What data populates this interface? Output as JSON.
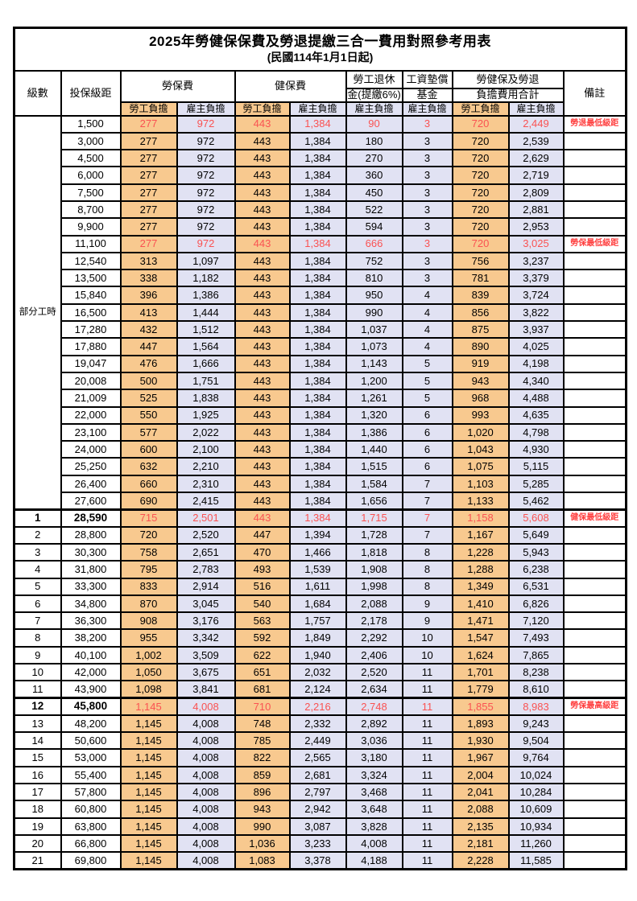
{
  "title": "2025年勞健保保費及勞退提繳三合一費用對照參考用表",
  "subtitle": "(民國114年1月1日起)",
  "colors": {
    "employee_column_bg": "#F8C98F",
    "employer_column_bg": "#E1E2F3",
    "highlight_value_text": "#FA5252",
    "note_text": "#FF4040",
    "border": "#000000"
  },
  "header": {
    "level": "級數",
    "bracket": "投保級距",
    "labor_fee": "勞保費",
    "health_fee": "健保費",
    "pension_line1": "勞工退休",
    "pension_line2": "金(提繳6%)",
    "wage_fund_line1": "工資墊償",
    "wage_fund_line2": "基金",
    "total_line1": "勞健保及勞退",
    "total_line2": "負擔費用合計",
    "note": "備註",
    "employee_share": "勞工負擔",
    "employer_share": "雇主負擔"
  },
  "group_label": "部分工時",
  "group_rowspan": 23,
  "rows": [
    {
      "level": "",
      "bracket": "1,500",
      "values": [
        "277",
        "972",
        "443",
        "1,384",
        "90",
        "3",
        "720",
        "2,449"
      ],
      "note": "勞退最低級距",
      "red": true,
      "bold": false,
      "thick": false
    },
    {
      "level": "",
      "bracket": "3,000",
      "values": [
        "277",
        "972",
        "443",
        "1,384",
        "180",
        "3",
        "720",
        "2,539"
      ],
      "note": "",
      "red": false,
      "bold": false,
      "thick": false
    },
    {
      "level": "",
      "bracket": "4,500",
      "values": [
        "277",
        "972",
        "443",
        "1,384",
        "270",
        "3",
        "720",
        "2,629"
      ],
      "note": "",
      "red": false,
      "bold": false,
      "thick": false
    },
    {
      "level": "",
      "bracket": "6,000",
      "values": [
        "277",
        "972",
        "443",
        "1,384",
        "360",
        "3",
        "720",
        "2,719"
      ],
      "note": "",
      "red": false,
      "bold": false,
      "thick": false
    },
    {
      "level": "",
      "bracket": "7,500",
      "values": [
        "277",
        "972",
        "443",
        "1,384",
        "450",
        "3",
        "720",
        "2,809"
      ],
      "note": "",
      "red": false,
      "bold": false,
      "thick": false
    },
    {
      "level": "",
      "bracket": "8,700",
      "values": [
        "277",
        "972",
        "443",
        "1,384",
        "522",
        "3",
        "720",
        "2,881"
      ],
      "note": "",
      "red": false,
      "bold": false,
      "thick": false
    },
    {
      "level": "",
      "bracket": "9,900",
      "values": [
        "277",
        "972",
        "443",
        "1,384",
        "594",
        "3",
        "720",
        "2,953"
      ],
      "note": "",
      "red": false,
      "bold": false,
      "thick": false
    },
    {
      "level": "",
      "bracket": "11,100",
      "values": [
        "277",
        "972",
        "443",
        "1,384",
        "666",
        "3",
        "720",
        "3,025"
      ],
      "note": "勞保最低級距",
      "red": true,
      "bold": false,
      "thick": false
    },
    {
      "level": "",
      "bracket": "12,540",
      "values": [
        "313",
        "1,097",
        "443",
        "1,384",
        "752",
        "3",
        "756",
        "3,237"
      ],
      "note": "",
      "red": false,
      "bold": false,
      "thick": false
    },
    {
      "level": "",
      "bracket": "13,500",
      "values": [
        "338",
        "1,182",
        "443",
        "1,384",
        "810",
        "3",
        "781",
        "3,379"
      ],
      "note": "",
      "red": false,
      "bold": false,
      "thick": false
    },
    {
      "level": "",
      "bracket": "15,840",
      "values": [
        "396",
        "1,386",
        "443",
        "1,384",
        "950",
        "4",
        "839",
        "3,724"
      ],
      "note": "",
      "red": false,
      "bold": false,
      "thick": false
    },
    {
      "level": "",
      "bracket": "16,500",
      "values": [
        "413",
        "1,444",
        "443",
        "1,384",
        "990",
        "4",
        "856",
        "3,822"
      ],
      "note": "",
      "red": false,
      "bold": false,
      "thick": false
    },
    {
      "level": "",
      "bracket": "17,280",
      "values": [
        "432",
        "1,512",
        "443",
        "1,384",
        "1,037",
        "4",
        "875",
        "3,937"
      ],
      "note": "",
      "red": false,
      "bold": false,
      "thick": false
    },
    {
      "level": "",
      "bracket": "17,880",
      "values": [
        "447",
        "1,564",
        "443",
        "1,384",
        "1,073",
        "4",
        "890",
        "4,025"
      ],
      "note": "",
      "red": false,
      "bold": false,
      "thick": false
    },
    {
      "level": "",
      "bracket": "19,047",
      "values": [
        "476",
        "1,666",
        "443",
        "1,384",
        "1,143",
        "5",
        "919",
        "4,198"
      ],
      "note": "",
      "red": false,
      "bold": false,
      "thick": false
    },
    {
      "level": "",
      "bracket": "20,008",
      "values": [
        "500",
        "1,751",
        "443",
        "1,384",
        "1,200",
        "5",
        "943",
        "4,340"
      ],
      "note": "",
      "red": false,
      "bold": false,
      "thick": false
    },
    {
      "level": "",
      "bracket": "21,009",
      "values": [
        "525",
        "1,838",
        "443",
        "1,384",
        "1,261",
        "5",
        "968",
        "4,488"
      ],
      "note": "",
      "red": false,
      "bold": false,
      "thick": false
    },
    {
      "level": "",
      "bracket": "22,000",
      "values": [
        "550",
        "1,925",
        "443",
        "1,384",
        "1,320",
        "6",
        "993",
        "4,635"
      ],
      "note": "",
      "red": false,
      "bold": false,
      "thick": false
    },
    {
      "level": "",
      "bracket": "23,100",
      "values": [
        "577",
        "2,022",
        "443",
        "1,384",
        "1,386",
        "6",
        "1,020",
        "4,798"
      ],
      "note": "",
      "red": false,
      "bold": false,
      "thick": false
    },
    {
      "level": "",
      "bracket": "24,000",
      "values": [
        "600",
        "2,100",
        "443",
        "1,384",
        "1,440",
        "6",
        "1,043",
        "4,930"
      ],
      "note": "",
      "red": false,
      "bold": false,
      "thick": false
    },
    {
      "level": "",
      "bracket": "25,250",
      "values": [
        "632",
        "2,210",
        "443",
        "1,384",
        "1,515",
        "6",
        "1,075",
        "5,115"
      ],
      "note": "",
      "red": false,
      "bold": false,
      "thick": false
    },
    {
      "level": "",
      "bracket": "26,400",
      "values": [
        "660",
        "2,310",
        "443",
        "1,384",
        "1,584",
        "7",
        "1,103",
        "5,285"
      ],
      "note": "",
      "red": false,
      "bold": false,
      "thick": false
    },
    {
      "level": "",
      "bracket": "27,600",
      "values": [
        "690",
        "2,415",
        "443",
        "1,384",
        "1,656",
        "7",
        "1,133",
        "5,462"
      ],
      "note": "",
      "red": false,
      "bold": false,
      "thick": false
    },
    {
      "level": "1",
      "bracket": "28,590",
      "values": [
        "715",
        "2,501",
        "443",
        "1,384",
        "1,715",
        "7",
        "1,158",
        "5,608"
      ],
      "note": "健保最低級距",
      "red": true,
      "bold": true,
      "thick": true
    },
    {
      "level": "2",
      "bracket": "28,800",
      "values": [
        "720",
        "2,520",
        "447",
        "1,394",
        "1,728",
        "7",
        "1,167",
        "5,649"
      ],
      "note": "",
      "red": false,
      "bold": false,
      "thick": false
    },
    {
      "level": "3",
      "bracket": "30,300",
      "values": [
        "758",
        "2,651",
        "470",
        "1,466",
        "1,818",
        "8",
        "1,228",
        "5,943"
      ],
      "note": "",
      "red": false,
      "bold": false,
      "thick": false
    },
    {
      "level": "4",
      "bracket": "31,800",
      "values": [
        "795",
        "2,783",
        "493",
        "1,539",
        "1,908",
        "8",
        "1,288",
        "6,238"
      ],
      "note": "",
      "red": false,
      "bold": false,
      "thick": false
    },
    {
      "level": "5",
      "bracket": "33,300",
      "values": [
        "833",
        "2,914",
        "516",
        "1,611",
        "1,998",
        "8",
        "1,349",
        "6,531"
      ],
      "note": "",
      "red": false,
      "bold": false,
      "thick": false
    },
    {
      "level": "6",
      "bracket": "34,800",
      "values": [
        "870",
        "3,045",
        "540",
        "1,684",
        "2,088",
        "9",
        "1,410",
        "6,826"
      ],
      "note": "",
      "red": false,
      "bold": false,
      "thick": false
    },
    {
      "level": "7",
      "bracket": "36,300",
      "values": [
        "908",
        "3,176",
        "563",
        "1,757",
        "2,178",
        "9",
        "1,471",
        "7,120"
      ],
      "note": "",
      "red": false,
      "bold": false,
      "thick": false
    },
    {
      "level": "8",
      "bracket": "38,200",
      "values": [
        "955",
        "3,342",
        "592",
        "1,849",
        "2,292",
        "10",
        "1,547",
        "7,493"
      ],
      "note": "",
      "red": false,
      "bold": false,
      "thick": false
    },
    {
      "level": "9",
      "bracket": "40,100",
      "values": [
        "1,002",
        "3,509",
        "622",
        "1,940",
        "2,406",
        "10",
        "1,624",
        "7,865"
      ],
      "note": "",
      "red": false,
      "bold": false,
      "thick": false
    },
    {
      "level": "10",
      "bracket": "42,000",
      "values": [
        "1,050",
        "3,675",
        "651",
        "2,032",
        "2,520",
        "11",
        "1,701",
        "8,238"
      ],
      "note": "",
      "red": false,
      "bold": false,
      "thick": false
    },
    {
      "level": "11",
      "bracket": "43,900",
      "values": [
        "1,098",
        "3,841",
        "681",
        "2,124",
        "2,634",
        "11",
        "1,779",
        "8,610"
      ],
      "note": "",
      "red": false,
      "bold": false,
      "thick": false
    },
    {
      "level": "12",
      "bracket": "45,800",
      "values": [
        "1,145",
        "4,008",
        "710",
        "2,216",
        "2,748",
        "11",
        "1,855",
        "8,983"
      ],
      "note": "勞保最高級距",
      "red": true,
      "bold": true,
      "thick": true
    },
    {
      "level": "13",
      "bracket": "48,200",
      "values": [
        "1,145",
        "4,008",
        "748",
        "2,332",
        "2,892",
        "11",
        "1,893",
        "9,243"
      ],
      "note": "",
      "red": false,
      "bold": false,
      "thick": false
    },
    {
      "level": "14",
      "bracket": "50,600",
      "values": [
        "1,145",
        "4,008",
        "785",
        "2,449",
        "3,036",
        "11",
        "1,930",
        "9,504"
      ],
      "note": "",
      "red": false,
      "bold": false,
      "thick": false
    },
    {
      "level": "15",
      "bracket": "53,000",
      "values": [
        "1,145",
        "4,008",
        "822",
        "2,565",
        "3,180",
        "11",
        "1,967",
        "9,764"
      ],
      "note": "",
      "red": false,
      "bold": false,
      "thick": false
    },
    {
      "level": "16",
      "bracket": "55,400",
      "values": [
        "1,145",
        "4,008",
        "859",
        "2,681",
        "3,324",
        "11",
        "2,004",
        "10,024"
      ],
      "note": "",
      "red": false,
      "bold": false,
      "thick": false
    },
    {
      "level": "17",
      "bracket": "57,800",
      "values": [
        "1,145",
        "4,008",
        "896",
        "2,797",
        "3,468",
        "11",
        "2,041",
        "10,284"
      ],
      "note": "",
      "red": false,
      "bold": false,
      "thick": false
    },
    {
      "level": "18",
      "bracket": "60,800",
      "values": [
        "1,145",
        "4,008",
        "943",
        "2,942",
        "3,648",
        "11",
        "2,088",
        "10,609"
      ],
      "note": "",
      "red": false,
      "bold": false,
      "thick": false
    },
    {
      "level": "19",
      "bracket": "63,800",
      "values": [
        "1,145",
        "4,008",
        "990",
        "3,087",
        "3,828",
        "11",
        "2,135",
        "10,934"
      ],
      "note": "",
      "red": false,
      "bold": false,
      "thick": false
    },
    {
      "level": "20",
      "bracket": "66,800",
      "values": [
        "1,145",
        "4,008",
        "1,036",
        "3,233",
        "4,008",
        "11",
        "2,181",
        "11,260"
      ],
      "note": "",
      "red": false,
      "bold": false,
      "thick": false
    },
    {
      "level": "21",
      "bracket": "69,800",
      "values": [
        "1,145",
        "4,008",
        "1,083",
        "3,378",
        "4,188",
        "11",
        "2,228",
        "11,585"
      ],
      "note": "",
      "red": false,
      "bold": false,
      "thick": false
    }
  ]
}
